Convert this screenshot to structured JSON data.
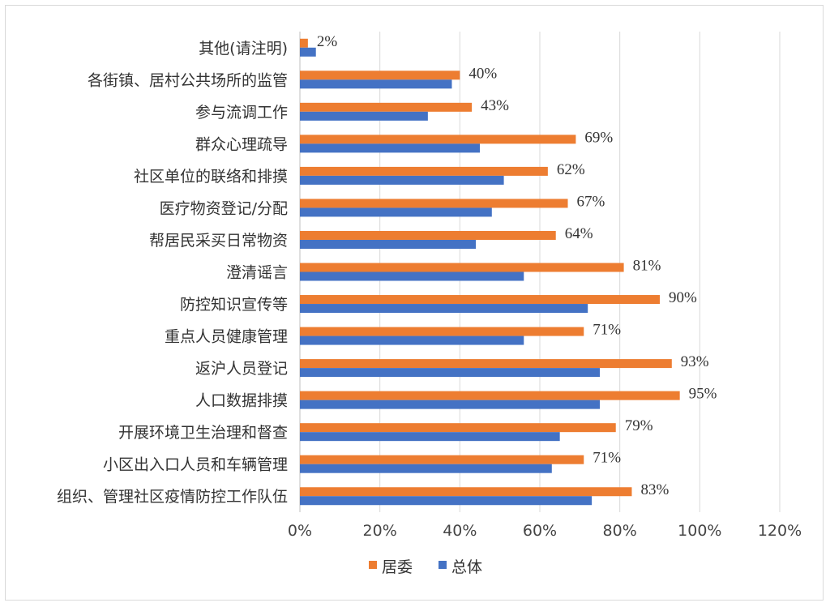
{
  "chart_data": {
    "type": "bar",
    "orientation": "horizontal",
    "categories": [
      "其他(请注明)",
      "各街镇、居村公共场所的监管",
      "参与流调工作",
      "群众心理疏导",
      "社区单位的联络和排摸",
      "医疗物资登记/分配",
      "帮居民采买日常物资",
      "澄清谣言",
      "防控知识宣传等",
      "重点人员健康管理",
      "返沪人员登记",
      "人口数据排摸",
      "开展环境卫生治理和督查",
      "小区出入口人员和车辆管理",
      "组织、管理社区疫情防控工作队伍"
    ],
    "series": [
      {
        "name": "居委",
        "color": "#ED7D31",
        "values": [
          2,
          40,
          43,
          69,
          62,
          67,
          64,
          81,
          90,
          71,
          93,
          95,
          79,
          71,
          83
        ],
        "labels": [
          "2%",
          "40%",
          "43%",
          "69%",
          "62%",
          "67%",
          "64%",
          "81%",
          "90%",
          "71%",
          "93%",
          "95%",
          "79%",
          "71%",
          "83%"
        ]
      },
      {
        "name": "总体",
        "color": "#4472C4",
        "values": [
          4,
          38,
          32,
          45,
          51,
          48,
          44,
          56,
          72,
          56,
          75,
          75,
          65,
          63,
          73
        ]
      }
    ],
    "x_ticks": [
      "0%",
      "20%",
      "40%",
      "60%",
      "80%",
      "100%",
      "120%"
    ],
    "xlim": [
      0,
      120
    ],
    "grid": true,
    "legend_position": "bottom"
  }
}
